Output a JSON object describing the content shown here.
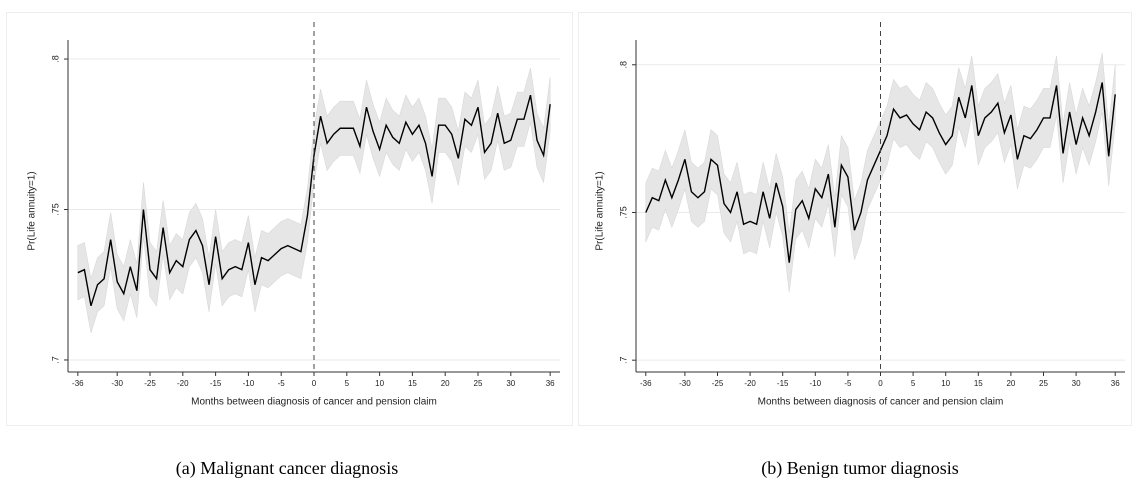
{
  "chart_data": [
    {
      "type": "line",
      "caption": "(a) Malignant cancer diagnosis",
      "x_label": "Months between diagnosis of cancer and pension claim",
      "y_label": "Pr(Life annuity=1)",
      "x": [
        -36,
        -35,
        -34,
        -33,
        -32,
        -31,
        -30,
        -29,
        -28,
        -27,
        -26,
        -25,
        -24,
        -23,
        -22,
        -21,
        -20,
        -19,
        -18,
        -17,
        -16,
        -15,
        -14,
        -13,
        -12,
        -11,
        -10,
        -9,
        -8,
        -7,
        -6,
        -5,
        -4,
        -3,
        -2,
        -1,
        0,
        1,
        2,
        3,
        4,
        5,
        6,
        7,
        8,
        9,
        10,
        11,
        12,
        13,
        14,
        15,
        16,
        17,
        18,
        19,
        20,
        21,
        22,
        23,
        24,
        25,
        26,
        27,
        28,
        29,
        30,
        31,
        32,
        33,
        34,
        35,
        36
      ],
      "series": [
        {
          "color": "#000000",
          "band_color": "#e6e6e6",
          "ci": 0.009,
          "values": [
            0.729,
            0.73,
            0.718,
            0.725,
            0.727,
            0.74,
            0.726,
            0.722,
            0.731,
            0.723,
            0.75,
            0.73,
            0.727,
            0.744,
            0.729,
            0.733,
            0.731,
            0.74,
            0.743,
            0.738,
            0.725,
            0.741,
            0.727,
            0.73,
            0.731,
            0.73,
            0.739,
            0.725,
            0.734,
            0.733,
            0.735,
            0.737,
            0.738,
            0.737,
            0.736,
            0.748,
            0.768,
            0.781,
            0.772,
            0.775,
            0.777,
            0.777,
            0.777,
            0.771,
            0.784,
            0.776,
            0.77,
            0.778,
            0.774,
            0.772,
            0.779,
            0.775,
            0.778,
            0.772,
            0.761,
            0.778,
            0.778,
            0.775,
            0.767,
            0.78,
            0.778,
            0.784,
            0.769,
            0.772,
            0.782,
            0.772,
            0.773,
            0.78,
            0.78,
            0.788,
            0.773,
            0.768,
            0.785
          ]
        }
      ],
      "xlim": [
        -37.5,
        37.5
      ],
      "xticks": [
        -36,
        -30,
        -25,
        -20,
        -15,
        -10,
        -5,
        0,
        5,
        10,
        15,
        20,
        25,
        30,
        36
      ],
      "ylim": [
        0.696,
        0.803
      ],
      "yticks": [
        {
          "value": 0.7,
          "label": ".7"
        },
        {
          "value": 0.75,
          "label": ".75"
        },
        {
          "value": 0.8,
          "label": ".8"
        }
      ],
      "vline": 0,
      "grid": true
    },
    {
      "type": "line",
      "caption": "(b) Benign tumor diagnosis",
      "x_label": "Months between diagnosis of cancer and pension claim",
      "y_label": "Pr(Life annuity=1)",
      "x": [
        -36,
        -35,
        -34,
        -33,
        -32,
        -31,
        -30,
        -29,
        -28,
        -27,
        -26,
        -25,
        -24,
        -23,
        -22,
        -21,
        -20,
        -19,
        -18,
        -17,
        -16,
        -15,
        -14,
        -13,
        -12,
        -11,
        -10,
        -9,
        -8,
        -7,
        -6,
        -5,
        -4,
        -3,
        -2,
        -1,
        0,
        1,
        2,
        3,
        4,
        5,
        6,
        7,
        8,
        9,
        10,
        11,
        12,
        13,
        14,
        15,
        16,
        17,
        18,
        19,
        20,
        21,
        22,
        23,
        24,
        25,
        26,
        27,
        28,
        29,
        30,
        31,
        32,
        33,
        34,
        35,
        36
      ],
      "series": [
        {
          "color": "#000000",
          "band_color": "#e6e6e6",
          "ci": 0.01,
          "values": [
            0.75,
            0.755,
            0.754,
            0.761,
            0.755,
            0.761,
            0.768,
            0.757,
            0.755,
            0.757,
            0.768,
            0.766,
            0.753,
            0.75,
            0.757,
            0.746,
            0.747,
            0.746,
            0.757,
            0.748,
            0.76,
            0.752,
            0.733,
            0.751,
            0.754,
            0.748,
            0.758,
            0.755,
            0.763,
            0.745,
            0.766,
            0.762,
            0.744,
            0.75,
            0.761,
            0.766,
            0.771,
            0.776,
            0.785,
            0.782,
            0.783,
            0.78,
            0.778,
            0.784,
            0.782,
            0.777,
            0.773,
            0.776,
            0.789,
            0.782,
            0.793,
            0.776,
            0.782,
            0.784,
            0.787,
            0.777,
            0.783,
            0.768,
            0.776,
            0.775,
            0.778,
            0.782,
            0.782,
            0.793,
            0.77,
            0.784,
            0.773,
            0.782,
            0.776,
            0.784,
            0.794,
            0.769,
            0.79
          ]
        }
      ],
      "xlim": [
        -37.5,
        37.5
      ],
      "xticks": [
        -36,
        -30,
        -25,
        -20,
        -15,
        -10,
        -5,
        0,
        5,
        10,
        15,
        20,
        25,
        30,
        36
      ],
      "ylim": [
        0.696,
        0.805
      ],
      "yticks": [
        {
          "value": 0.7,
          "label": ".7"
        },
        {
          "value": 0.75,
          "label": ".75"
        },
        {
          "value": 0.8,
          "label": ".8"
        }
      ],
      "vline": 0,
      "grid": true
    }
  ]
}
